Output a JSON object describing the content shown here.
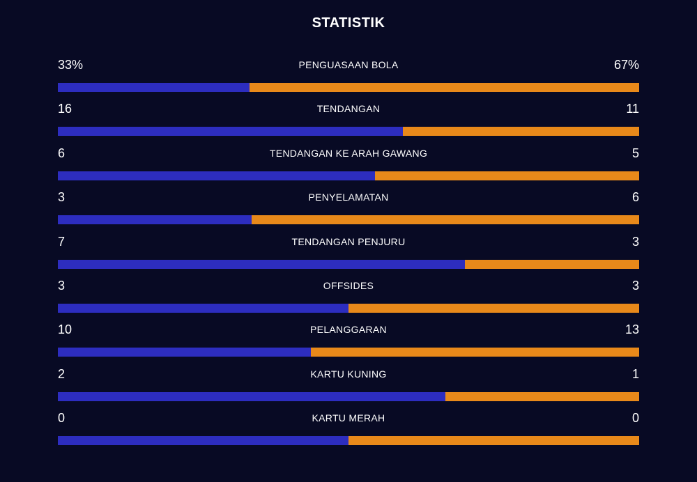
{
  "title": "STATISTIK",
  "colors": {
    "background": "#080a24",
    "home_bar": "#2d2dbf",
    "away_bar": "#e8891a"
  },
  "stats": [
    {
      "label": "PENGUASAAN BOLA",
      "home": "33%",
      "away": "67%",
      "home_fraction": 0.33
    },
    {
      "label": "TENDANGAN",
      "home": "16",
      "away": "11",
      "home_fraction": 0.593
    },
    {
      "label": "TENDANGAN KE ARAH GAWANG",
      "home": "6",
      "away": "5",
      "home_fraction": 0.545
    },
    {
      "label": "PENYELAMATAN",
      "home": "3",
      "away": "6",
      "home_fraction": 0.333
    },
    {
      "label": "TENDANGAN PENJURU",
      "home": "7",
      "away": "3",
      "home_fraction": 0.7
    },
    {
      "label": "OFFSIDES",
      "home": "3",
      "away": "3",
      "home_fraction": 0.5
    },
    {
      "label": "PELANGGARAN",
      "home": "10",
      "away": "13",
      "home_fraction": 0.435
    },
    {
      "label": "KARTU KUNING",
      "home": "2",
      "away": "1",
      "home_fraction": 0.667
    },
    {
      "label": "KARTU MERAH",
      "home": "0",
      "away": "0",
      "home_fraction": 0.5
    }
  ]
}
